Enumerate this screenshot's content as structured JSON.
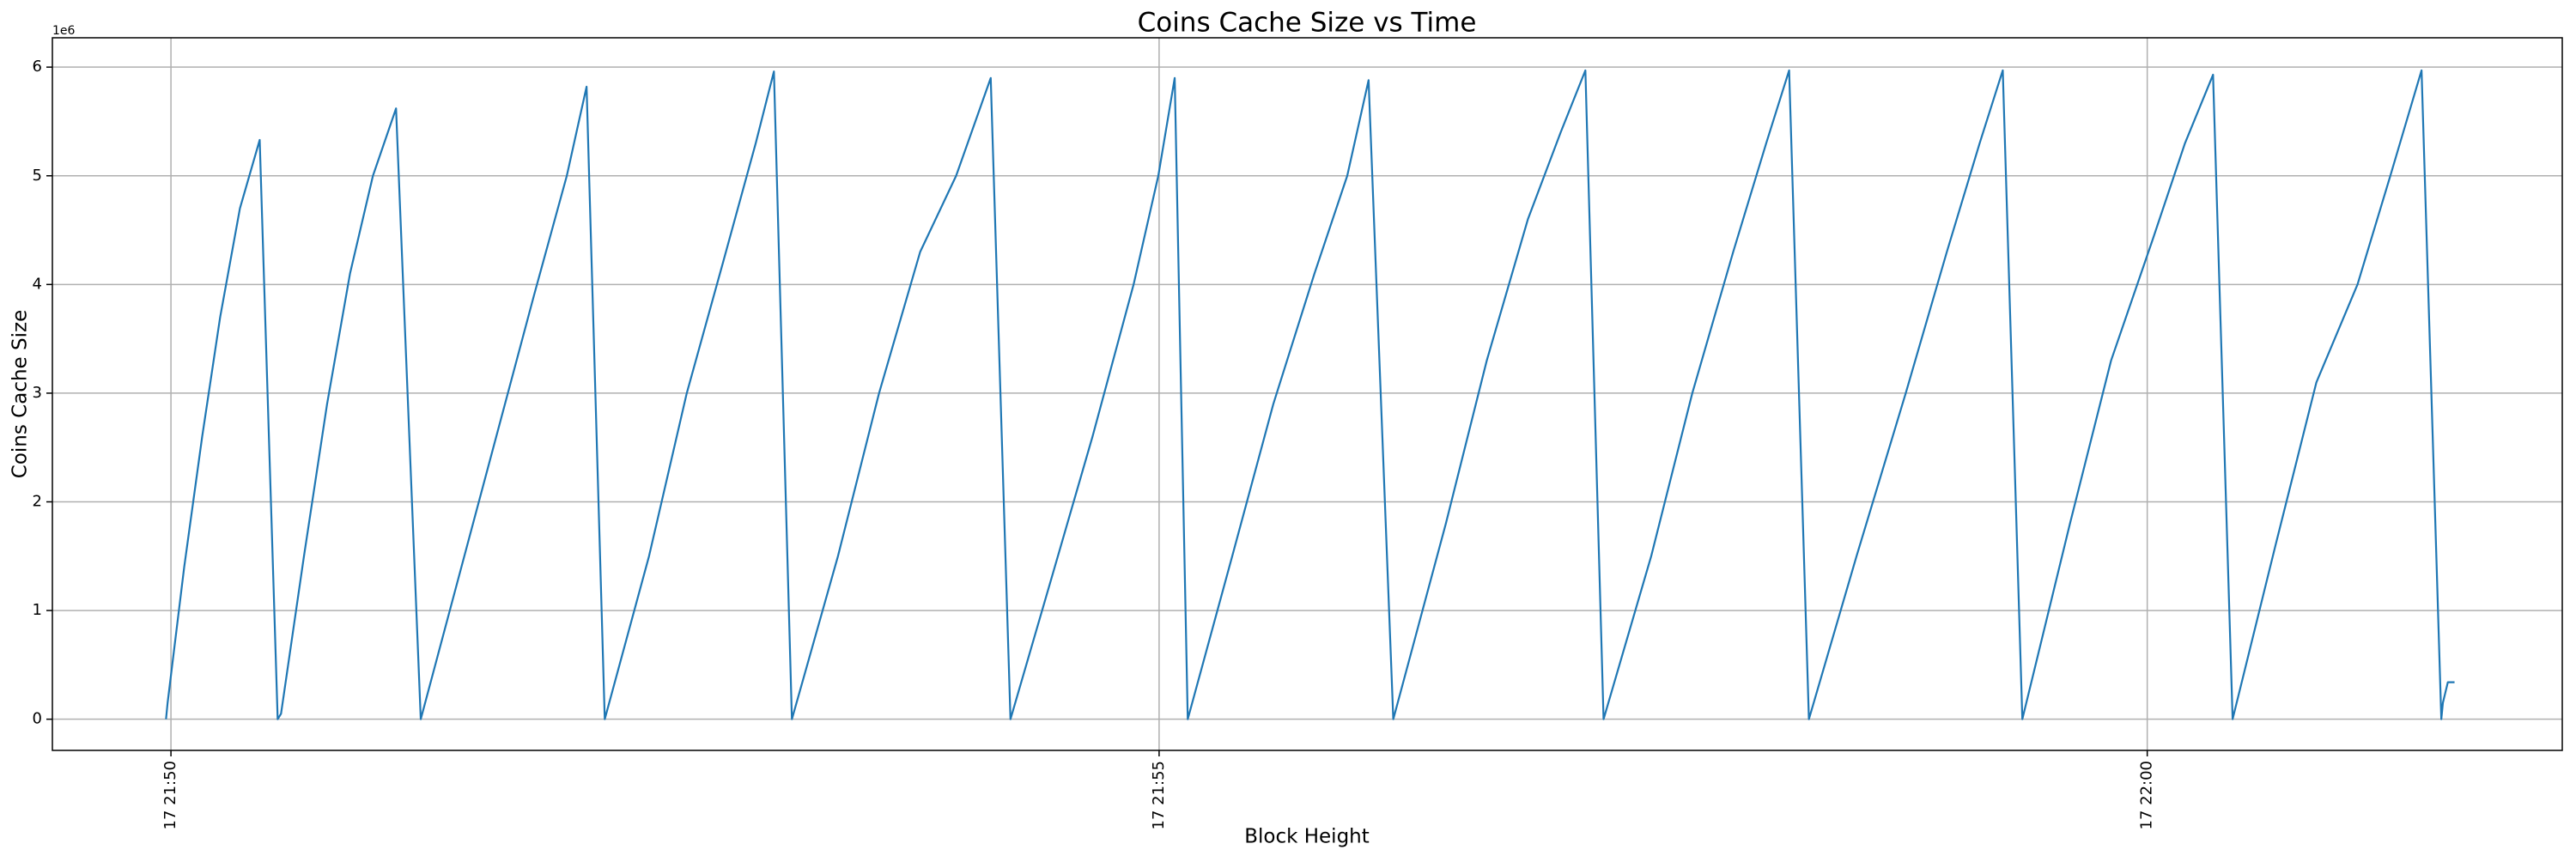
{
  "chart_data": {
    "type": "line",
    "title": "Coins Cache Size vs Time",
    "x_label": "Block Height",
    "y_label": "Coins Cache Size",
    "y_offset_label": "1e6",
    "grid": true,
    "xlim": [
      1309.4,
      1322.1
    ],
    "ylim": [
      -287000,
      6270000
    ],
    "xticks": [
      {
        "value": 1310,
        "label": "17 21:50"
      },
      {
        "value": 1315,
        "label": "17 21:55"
      },
      {
        "value": 1320,
        "label": "17 22:00"
      }
    ],
    "yticks": [
      {
        "value": 0,
        "label": "0"
      },
      {
        "value": 1000000,
        "label": "1"
      },
      {
        "value": 2000000,
        "label": "2"
      },
      {
        "value": 3000000,
        "label": "3"
      },
      {
        "value": 4000000,
        "label": "4"
      },
      {
        "value": 5000000,
        "label": "5"
      },
      {
        "value": 6000000,
        "label": "6"
      }
    ],
    "x": [
      1309.975,
      1309.983,
      1310.067,
      1310.158,
      1310.249,
      1310.349,
      1310.449,
      1310.54,
      1310.557,
      1310.673,
      1310.79,
      1310.906,
      1311.022,
      1311.139,
      1311.264,
      1311.455,
      1311.646,
      1311.837,
      1312.003,
      1312.103,
      1312.195,
      1312.419,
      1312.61,
      1312.793,
      1312.959,
      1313.051,
      1313.142,
      1313.375,
      1313.583,
      1313.791,
      1313.973,
      1314.148,
      1314.248,
      1314.456,
      1314.663,
      1314.871,
      1314.996,
      1315.079,
      1315.145,
      1315.37,
      1315.578,
      1315.786,
      1315.952,
      1316.06,
      1316.185,
      1316.451,
      1316.658,
      1316.866,
      1317.032,
      1317.157,
      1317.249,
      1317.49,
      1317.698,
      1317.905,
      1318.072,
      1318.188,
      1318.288,
      1318.529,
      1318.778,
      1318.986,
      1319.152,
      1319.269,
      1319.368,
      1319.609,
      1319.817,
      1320.025,
      1320.191,
      1320.333,
      1320.432,
      1320.649,
      1320.856,
      1321.064,
      1321.23,
      1321.388,
      1321.488,
      1321.496,
      1321.521,
      1321.555
    ],
    "series": [
      {
        "name": "Coins Cache Size",
        "color": "#1f77b4",
        "values": [
          0,
          150000,
          1400000,
          2600000,
          3700000,
          4700000,
          5330000,
          0,
          50000,
          1500000,
          2900000,
          4100000,
          5000000,
          5620000,
          0,
          1300000,
          2600000,
          3900000,
          5000000,
          5820000,
          0,
          1500000,
          3000000,
          4200000,
          5300000,
          5960000,
          0,
          1500000,
          3000000,
          4300000,
          5000000,
          5900000,
          0,
          1300000,
          2600000,
          4000000,
          5000000,
          5900000,
          0,
          1500000,
          2900000,
          4100000,
          5000000,
          5880000,
          0,
          1800000,
          3300000,
          4600000,
          5400000,
          5970000,
          0,
          1500000,
          3000000,
          4300000,
          5300000,
          5970000,
          0,
          1500000,
          3000000,
          4300000,
          5300000,
          5970000,
          0,
          1800000,
          3300000,
          4400000,
          5300000,
          5930000,
          0,
          1600000,
          3100000,
          4000000,
          5000000,
          5970000,
          0,
          150000,
          340000,
          340000
        ]
      }
    ]
  }
}
